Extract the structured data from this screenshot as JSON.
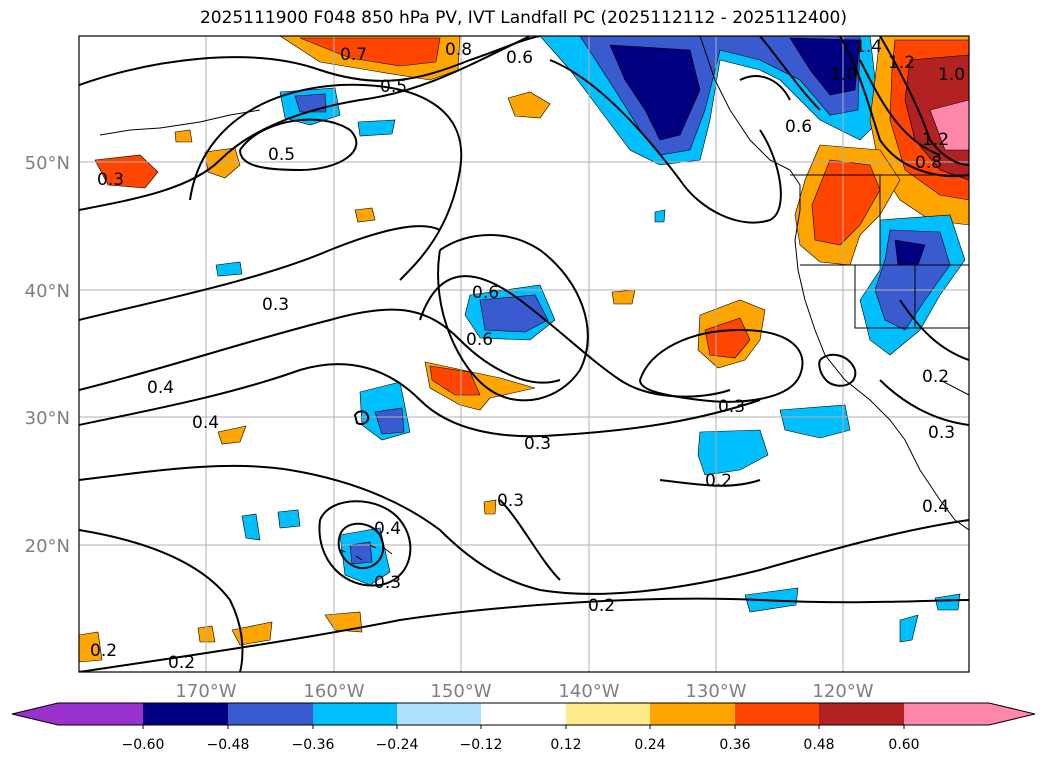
{
  "title": "2025111900 F048 850 hPa PV, IVT Landfall PC (2025112112 - 2025112400)",
  "map": {
    "lon_labels": [
      "170°W",
      "160°W",
      "150°W",
      "140°W",
      "130°W",
      "120°W"
    ],
    "lat_labels": [
      "50°N",
      "40°N",
      "30°N",
      "20°N"
    ],
    "contour_labels": [
      "0.8",
      "0.7",
      "0.5",
      "0.6",
      "0.5",
      "1.4",
      "1.2",
      "1.0",
      "1.2",
      "1.0",
      "0.8",
      "0.6",
      "0.3",
      "0.6",
      "0.6",
      "0.3",
      "0.4",
      "0.4",
      "0.3",
      "0.3",
      "0.3",
      "0.2",
      "0.4",
      "0.3",
      "0.2",
      "0.2",
      "0.2",
      "0.2",
      "0.3",
      "0.4"
    ],
    "grid": true,
    "colors": {
      "grid": "#b0b0b0",
      "contour": "#000000",
      "tick_label": "#7f7f7f"
    }
  },
  "colorbar": {
    "tick_labels": [
      "−0.60",
      "−0.48",
      "−0.36",
      "−0.24",
      "−0.12",
      "0.12",
      "0.24",
      "0.36",
      "0.48",
      "0.60"
    ],
    "colors": [
      "#9932cc",
      "#000080",
      "#3a5bd0",
      "#00bfff",
      "#b0e2ff",
      "#ffffff",
      "#ffe98a",
      "#ffa500",
      "#ff4500",
      "#b22222",
      "#ff88aa"
    ]
  }
}
